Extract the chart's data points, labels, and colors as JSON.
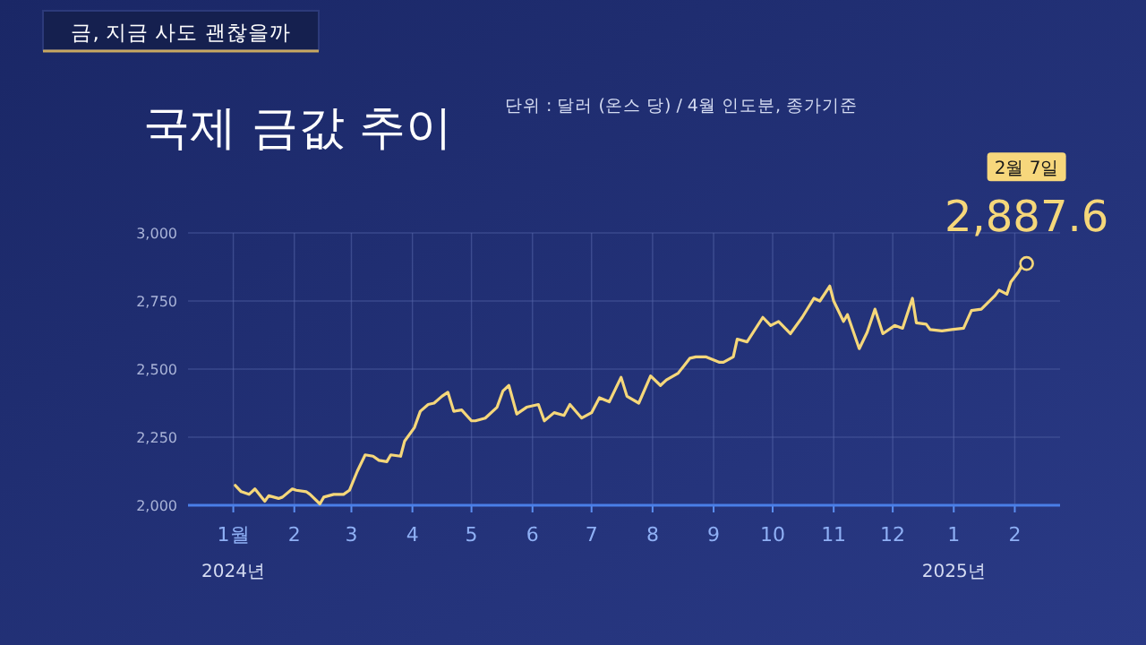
{
  "chart_data": {
    "type": "line",
    "title": "국제 금값 추이",
    "subtitle": "단위 : 달러 (온스 당) / 4월 인도분, 종가기준",
    "annotations": [
      "금, 지금 사도 괜찮을까",
      "2월 7일",
      "2024년",
      "2025년",
      {
        "text": "2,887.6",
        "x": "2025-02-07",
        "y": 2887.6
      }
    ],
    "x": [
      "2024-01-02",
      "2024-01-05",
      "2024-01-09",
      "2024-01-12",
      "2024-01-17",
      "2024-01-19",
      "2024-01-24",
      "2024-01-26",
      "2024-01-31",
      "2024-02-02",
      "2024-02-07",
      "2024-02-09",
      "2024-02-14",
      "2024-02-16",
      "2024-02-21",
      "2024-02-26",
      "2024-02-29",
      "2024-03-04",
      "2024-03-08",
      "2024-03-12",
      "2024-03-15",
      "2024-03-19",
      "2024-03-21",
      "2024-03-26",
      "2024-03-28",
      "2024-04-02",
      "2024-04-05",
      "2024-04-09",
      "2024-04-12",
      "2024-04-16",
      "2024-04-19",
      "2024-04-22",
      "2024-04-26",
      "2024-05-01",
      "2024-05-03",
      "2024-05-08",
      "2024-05-14",
      "2024-05-17",
      "2024-05-20",
      "2024-05-24",
      "2024-05-29",
      "2024-06-04",
      "2024-06-07",
      "2024-06-12",
      "2024-06-17",
      "2024-06-20",
      "2024-06-26",
      "2024-07-01",
      "2024-07-05",
      "2024-07-10",
      "2024-07-16",
      "2024-07-19",
      "2024-07-25",
      "2024-07-31",
      "2024-08-05",
      "2024-08-08",
      "2024-08-14",
      "2024-08-20",
      "2024-08-23",
      "2024-08-28",
      "2024-09-04",
      "2024-09-06",
      "2024-09-11",
      "2024-09-13",
      "2024-09-18",
      "2024-09-26",
      "2024-09-30",
      "2024-10-04",
      "2024-10-10",
      "2024-10-16",
      "2024-10-22",
      "2024-10-25",
      "2024-10-30",
      "2024-11-01",
      "2024-11-06",
      "2024-11-08",
      "2024-11-14",
      "2024-11-18",
      "2024-11-22",
      "2024-11-26",
      "2024-12-02",
      "2024-12-06",
      "2024-12-11",
      "2024-12-13",
      "2024-12-18",
      "2024-12-20",
      "2024-12-26",
      "2024-12-31",
      "2025-01-06",
      "2025-01-10",
      "2025-01-15",
      "2025-01-22",
      "2025-01-24",
      "2025-01-28",
      "2025-01-30",
      "2025-02-03",
      "2025-02-05",
      "2025-02-07"
    ],
    "series": [
      {
        "color": "#f5d77a",
        "values": [
          2073,
          2050,
          2040,
          2060,
          2015,
          2035,
          2025,
          2030,
          2060,
          2055,
          2050,
          2040,
          2005,
          2030,
          2040,
          2040,
          2055,
          2125,
          2185,
          2180,
          2165,
          2160,
          2185,
          2180,
          2235,
          2285,
          2345,
          2370,
          2375,
          2400,
          2415,
          2345,
          2350,
          2310,
          2310,
          2320,
          2360,
          2420,
          2440,
          2335,
          2360,
          2370,
          2310,
          2340,
          2330,
          2370,
          2320,
          2340,
          2395,
          2380,
          2470,
          2400,
          2375,
          2475,
          2440,
          2460,
          2485,
          2540,
          2545,
          2545,
          2525,
          2525,
          2545,
          2610,
          2600,
          2690,
          2660,
          2675,
          2630,
          2690,
          2760,
          2750,
          2805,
          2750,
          2675,
          2700,
          2575,
          2635,
          2720,
          2630,
          2660,
          2650,
          2760,
          2670,
          2665,
          2645,
          2640,
          2645,
          2650,
          2715,
          2720,
          2770,
          2790,
          2775,
          2820,
          2858,
          2885,
          2887.6
        ]
      }
    ],
    "xlim": [
      "2023-12-09",
      "2025-02-24"
    ],
    "xticks": [
      {
        "value": "2024-01-01",
        "label": "1월"
      },
      {
        "value": "2024-02-01",
        "label": "2"
      },
      {
        "value": "2024-03-01",
        "label": "3"
      },
      {
        "value": "2024-04-01",
        "label": "4"
      },
      {
        "value": "2024-05-01",
        "label": "5"
      },
      {
        "value": "2024-06-01",
        "label": "6"
      },
      {
        "value": "2024-07-01",
        "label": "7"
      },
      {
        "value": "2024-08-01",
        "label": "8"
      },
      {
        "value": "2024-09-01",
        "label": "9"
      },
      {
        "value": "2024-10-01",
        "label": "10"
      },
      {
        "value": "2024-11-01",
        "label": "11"
      },
      {
        "value": "2024-12-01",
        "label": "12"
      },
      {
        "value": "2025-01-01",
        "label": "1"
      },
      {
        "value": "2025-02-01",
        "label": "2"
      }
    ],
    "ylim": [
      2000,
      3000
    ],
    "yticks": [
      {
        "value": 2000,
        "label": "2,000"
      },
      {
        "value": 2250,
        "label": "2,250"
      },
      {
        "value": 2500,
        "label": "2,500"
      },
      {
        "value": 2750,
        "label": "2,750"
      },
      {
        "value": 3000,
        "label": "3,000"
      }
    ],
    "grid": true,
    "marker": "none",
    "line_style": "solid"
  }
}
